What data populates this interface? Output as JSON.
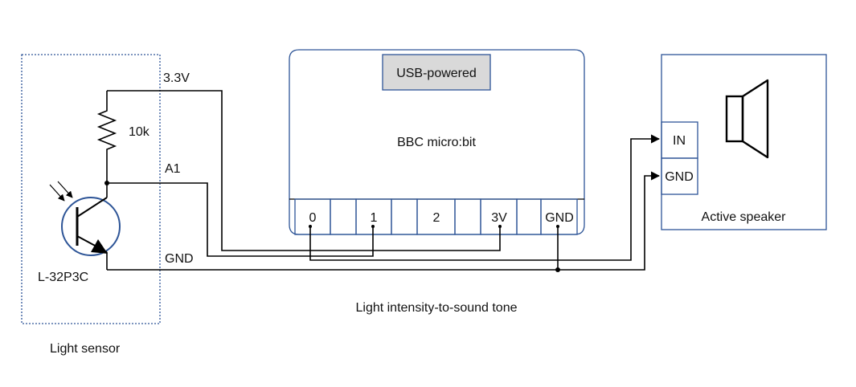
{
  "diagram": {
    "title": "Light intensity-to-sound tone",
    "sensor": {
      "label": "Light sensor",
      "part": "L-32P3C",
      "resistor": "10k",
      "net_vcc": "3.3V",
      "net_signal": "A1",
      "net_gnd": "GND"
    },
    "microbit": {
      "name": "BBC micro:bit",
      "power": "USB-powered",
      "pins": [
        "0",
        "1",
        "2",
        "3V",
        "GND"
      ]
    },
    "speaker": {
      "label": "Active speaker",
      "in_label": "IN",
      "gnd_label": "GND"
    },
    "colors": {
      "outline": "#2e5597",
      "wire": "#000000",
      "usb_fill": "#d9d9d9"
    }
  }
}
